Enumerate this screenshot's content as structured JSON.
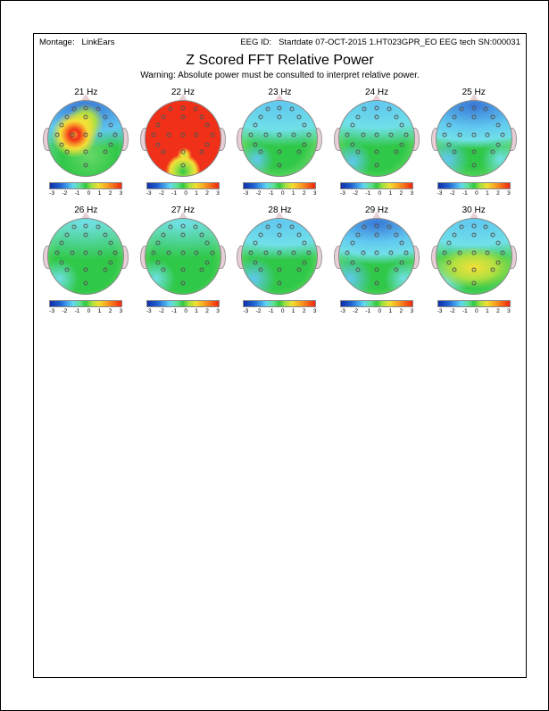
{
  "header": {
    "montage_label": "Montage:",
    "montage_value": "LinkEars",
    "eeg_id_label": "EEG ID:",
    "eeg_id_value": "Startdate 07-OCT-2015 1.HT023GPR_EO EEG tech SN:000031"
  },
  "title": "Z Scored FFT Relative Power",
  "warning": "Warning:  Absolute power must be consulted to interpret relative power.",
  "colorbar": {
    "ticks": [
      "-3",
      "-2",
      "-1",
      "0",
      "1",
      "2",
      "3"
    ],
    "gradient_css": "linear-gradient(to right,#1030a8 0%,#2060d0 14%,#40a0e8 24%,#60d8f0 32%,#60e090 42%,#30c840 50%,#a0e040 58%,#f0e030 68%,#f8a020 80%,#f02810 100%)"
  },
  "electrodes_xy_pct": [
    [
      50,
      10
    ],
    [
      25,
      22
    ],
    [
      50,
      22
    ],
    [
      75,
      22
    ],
    [
      12,
      45
    ],
    [
      32,
      45
    ],
    [
      50,
      45
    ],
    [
      68,
      45
    ],
    [
      88,
      45
    ],
    [
      25,
      68
    ],
    [
      50,
      68
    ],
    [
      75,
      68
    ],
    [
      50,
      85
    ],
    [
      18,
      32
    ],
    [
      82,
      32
    ],
    [
      18,
      58
    ],
    [
      82,
      58
    ],
    [
      34,
      12
    ],
    [
      66,
      12
    ]
  ],
  "colors": {
    "deep_blue": "#1840b0",
    "blue": "#3878d8",
    "lblue": "#60c8f0",
    "cyan": "#70e0e8",
    "green": "#30c848",
    "lgreen": "#68d868",
    "ygreen": "#b0e040",
    "yellow": "#f4e038",
    "orange": "#f89828",
    "red": "#f03018"
  },
  "maps": [
    {
      "label": "21 Hz",
      "bg": "radial-gradient(circle at 35% 45%, #f89828 0%, #f03018 8%, #f89828 16%, #f4e038 22%, rgba(0,0,0,0) 36%), radial-gradient(circle at 50% 28%, #f4e038 0%, #b0e040 14%, rgba(0,0,0,0) 28%), radial-gradient(ellipse 120% 55% at 50% 8%, #3878d8 0%, #60c8f0 60%, rgba(0,0,0,0) 100%), radial-gradient(circle at 55% 72%, #68d868 0%, #30c848 40%, rgba(0,0,0,0) 70%), linear-gradient(#60c8f0,#68d868)"
    },
    {
      "label": "22 Hz",
      "bg": "radial-gradient(circle at 52% 72%, #b0e040 0%, #f4e038 4%, rgba(0,0,0,0) 11%), radial-gradient(circle at 50% 94%, #30c848 0%, #b0e040 10%, #f4e038 16%, rgba(0,0,0,0) 22%), radial-gradient(ellipse 140% 120% at 50% 45%, #f03018 0%, #f03018 45%, #f89828 52%, #f4e038 58%, #b0e040 64%, rgba(0,0,0,0) 72%), radial-gradient(ellipse 120% 40% at 50% 4%, #60c8f0 0%, #70e0e8 70%, rgba(0,0,0,0) 100%), linear-gradient(#70e0e8,#68d868)"
    },
    {
      "label": "23 Hz",
      "bg": "radial-gradient(ellipse 130% 55% at 50% 6%, #60c8f0 0%, #70e0e8 60%, rgba(0,0,0,0) 100%), radial-gradient(circle at 20% 78%, #60c8f0 0%, rgba(0,0,0,0) 20%), radial-gradient(circle at 50% 55%, #30c848 0%, #30c848 45%, #68d868 70%, rgba(0,0,0,0) 100%), #68d868"
    },
    {
      "label": "24 Hz",
      "bg": "radial-gradient(ellipse 130% 55% at 50% 6%, #60c8f0 0%, #70e0e8 55%, rgba(0,0,0,0) 100%), radial-gradient(circle at 18% 80%, #60c8f0 0%, rgba(0,0,0,0) 22%), radial-gradient(circle at 50% 55%, #30c848 0%, #30c848 50%, #68d868 75%, rgba(0,0,0,0) 100%), #68d868"
    },
    {
      "label": "25 Hz",
      "bg": "radial-gradient(ellipse 130% 58% at 50% 6%, #3878d8 0%, #60c8f0 50%, #70e0e8 80%, rgba(0,0,0,0) 100%), radial-gradient(circle at 15% 78%, #60c8f0 0%, rgba(0,0,0,0) 25%), radial-gradient(circle at 85% 78%, #70e0e8 0%, rgba(0,0,0,0) 22%), radial-gradient(circle at 50% 55%, #30c848 0%, #30c848 45%, #68d868 72%, rgba(0,0,0,0) 100%), #68d868"
    },
    {
      "label": "26 Hz",
      "bg": "radial-gradient(ellipse 130% 50% at 50% 5%, #70e0e8 0%, rgba(0,0,0,0) 100%), radial-gradient(circle at 15% 80%, #70e0e8 0%, rgba(0,0,0,0) 22%), radial-gradient(circle at 50% 55%, #30c848 0%, #30c848 55%, #68d868 80%, rgba(0,0,0,0) 100%), #68d868"
    },
    {
      "label": "27 Hz",
      "bg": "radial-gradient(ellipse 130% 48% at 50% 5%, #70e0e8 0%, rgba(0,0,0,0) 100%), radial-gradient(circle at 14% 80%, #70e0e8 0%, rgba(0,0,0,0) 22%), radial-gradient(circle at 50% 55%, #30c848 0%, #30c848 55%, #68d868 80%, rgba(0,0,0,0) 100%), #68d868"
    },
    {
      "label": "28 Hz",
      "bg": "radial-gradient(ellipse 130% 50% at 50% 5%, #60c8f0 0%, #70e0e8 60%, rgba(0,0,0,0) 100%), radial-gradient(circle at 16% 80%, #60c8f0 0%, rgba(0,0,0,0) 25%), radial-gradient(circle at 50% 55%, #30c848 0%, #30c848 52%, #68d868 78%, rgba(0,0,0,0) 100%), #68d868"
    },
    {
      "label": "29 Hz",
      "bg": "radial-gradient(ellipse 130% 55% at 50% 6%, #3878d8 0%, #60c8f0 45%, #70e0e8 75%, rgba(0,0,0,0) 100%), radial-gradient(circle at 14% 80%, #60c8f0 0%, rgba(0,0,0,0) 26%), radial-gradient(circle at 86% 80%, #70e0e8 0%, rgba(0,0,0,0) 22%), radial-gradient(circle at 50% 55%, #30c848 0%, #30c848 50%, #68d868 78%, rgba(0,0,0,0) 100%), #68d868"
    },
    {
      "label": "30 Hz",
      "bg": "radial-gradient(ellipse 55% 28% at 50% 65%, #f4e038 0%, #b0e040 55%, rgba(0,0,0,0) 100%), radial-gradient(ellipse 130% 50% at 50% 5%, #60c8f0 0%, #70e0e8 60%, rgba(0,0,0,0) 100%), radial-gradient(circle at 14% 82%, #70e0e8 0%, rgba(0,0,0,0) 24%), radial-gradient(circle at 50% 55%, #30c848 0%, #30c848 48%, #68d868 76%, rgba(0,0,0,0) 100%), #68d868"
    }
  ]
}
